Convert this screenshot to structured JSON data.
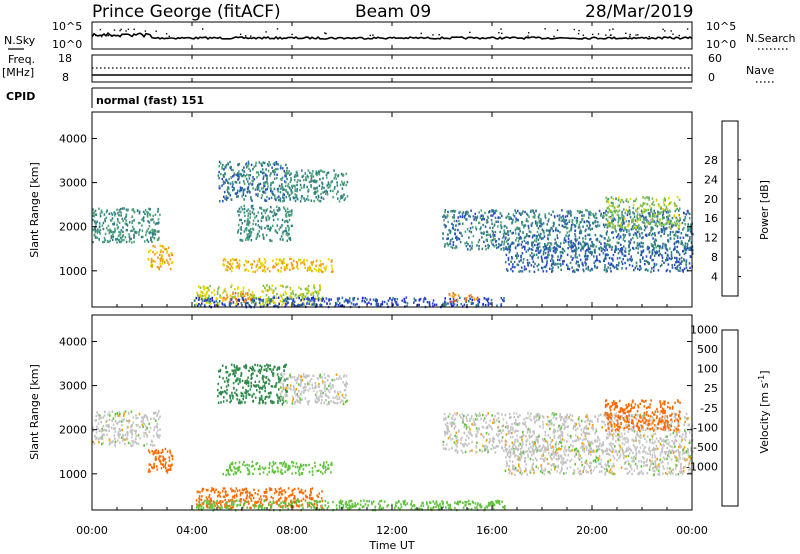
{
  "header": {
    "station": "Prince George (fitACF)",
    "beam": "Beam 09",
    "date": "28/Mar/2019"
  },
  "strip_labels": {
    "nsky": "N.Sky",
    "nsearch": "N.Search",
    "freq_line1": "Freq.",
    "freq_line2": "[MHz]",
    "nave": "Nave",
    "cpid": "CPID",
    "cpid_value": "normal (fast) 151"
  },
  "noise_axis": {
    "top_left": "10^5",
    "bottom_left": "10^0",
    "top_right": "10^5",
    "bottom_right": "10^0"
  },
  "freq_axis": {
    "left_ticks": [
      "18",
      "8"
    ],
    "right_ticks": [
      "60",
      "0"
    ]
  },
  "colors": {
    "power_scale": [
      "#1e22e6",
      "#2a4cc0",
      "#2f7e84",
      "#4fa27a",
      "#7fbf4a",
      "#e8d200",
      "#f09a10",
      "#f25a00",
      "#ff2000"
    ],
    "velocity_scale": [
      "#2436c8",
      "#3070a8",
      "#2f8a4a",
      "#5fc23a",
      "#c0c0c0",
      "#c8c8c8",
      "#f0a000",
      "#ff6a00",
      "#ff2000"
    ]
  },
  "chart_data": [
    {
      "type": "heatmap",
      "panel": "power",
      "ylabel": "Slant Range [km]",
      "ylim": [
        180,
        4600
      ],
      "yticks": [
        "1000",
        "2000",
        "3000",
        "4000"
      ],
      "xlim": [
        0,
        24
      ],
      "colorbar": {
        "label": "Power [dB]",
        "ticks": [
          "4",
          "8",
          "12",
          "16",
          "20",
          "24",
          "28"
        ]
      },
      "regions": [
        {
          "t0": 0.0,
          "t1": 2.7,
          "r0": 1650,
          "r1": 2450,
          "value": 12
        },
        {
          "t0": 2.2,
          "t1": 3.2,
          "r0": 1050,
          "r1": 1600,
          "value": 24
        },
        {
          "t0": 4.1,
          "t1": 9.2,
          "r0": 250,
          "r1": 700,
          "value": 20
        },
        {
          "t0": 5.2,
          "t1": 6.4,
          "r0": 300,
          "r1": 520,
          "value": 28
        },
        {
          "t0": 5.2,
          "t1": 9.6,
          "r0": 1000,
          "r1": 1300,
          "value": 24
        },
        {
          "t0": 5.0,
          "t1": 7.8,
          "r0": 2600,
          "r1": 3500,
          "value": 10
        },
        {
          "t0": 7.5,
          "t1": 10.2,
          "r0": 2600,
          "r1": 3300,
          "value": 12
        },
        {
          "t0": 5.8,
          "t1": 8.0,
          "r0": 1700,
          "r1": 2500,
          "value": 12
        },
        {
          "t0": 4.0,
          "t1": 16.5,
          "r0": 200,
          "r1": 420,
          "value": 6
        },
        {
          "t0": 14.2,
          "t1": 15.4,
          "r0": 320,
          "r1": 520,
          "value": 28
        },
        {
          "t0": 14.0,
          "t1": 24.0,
          "r0": 1500,
          "r1": 2400,
          "value": 10
        },
        {
          "t0": 16.5,
          "t1": 24.0,
          "r0": 1000,
          "r1": 1600,
          "value": 8
        },
        {
          "t0": 20.5,
          "t1": 23.5,
          "r0": 2000,
          "r1": 2700,
          "value": 18
        }
      ]
    },
    {
      "type": "heatmap",
      "panel": "velocity",
      "xlabel": "Time UT",
      "ylabel": "Slant Range [km]",
      "ylim": [
        180,
        4600
      ],
      "yticks": [
        "1000",
        "2000",
        "3000",
        "4000"
      ],
      "xlim": [
        0,
        24
      ],
      "xticks": [
        "00:00",
        "04:00",
        "08:00",
        "12:00",
        "16:00",
        "20:00",
        "00:00"
      ],
      "colorbar": {
        "label": "Velocity [m s^-1]",
        "ticks": [
          "1000",
          "500",
          "100",
          "25",
          "-25",
          "-100",
          "-500",
          "-1000"
        ]
      },
      "regions": [
        {
          "t0": 0.0,
          "t1": 2.7,
          "r0": 1650,
          "r1": 2450,
          "value": 0
        },
        {
          "t0": 2.2,
          "t1": 3.2,
          "r0": 1050,
          "r1": 1600,
          "value": -300
        },
        {
          "t0": 4.1,
          "t1": 9.2,
          "r0": 250,
          "r1": 700,
          "value": -200
        },
        {
          "t0": 5.2,
          "t1": 9.6,
          "r0": 1000,
          "r1": 1300,
          "value": 60
        },
        {
          "t0": 5.0,
          "t1": 7.8,
          "r0": 2600,
          "r1": 3500,
          "value": 200
        },
        {
          "t0": 7.5,
          "t1": 10.2,
          "r0": 2600,
          "r1": 3300,
          "value": 0
        },
        {
          "t0": 4.0,
          "t1": 16.5,
          "r0": 200,
          "r1": 420,
          "value": 60
        },
        {
          "t0": 14.0,
          "t1": 24.0,
          "r0": 1500,
          "r1": 2400,
          "value": 0
        },
        {
          "t0": 16.5,
          "t1": 24.0,
          "r0": 1000,
          "r1": 1600,
          "value": 0
        },
        {
          "t0": 20.5,
          "t1": 23.5,
          "r0": 2000,
          "r1": 2700,
          "value": -300
        }
      ]
    }
  ]
}
